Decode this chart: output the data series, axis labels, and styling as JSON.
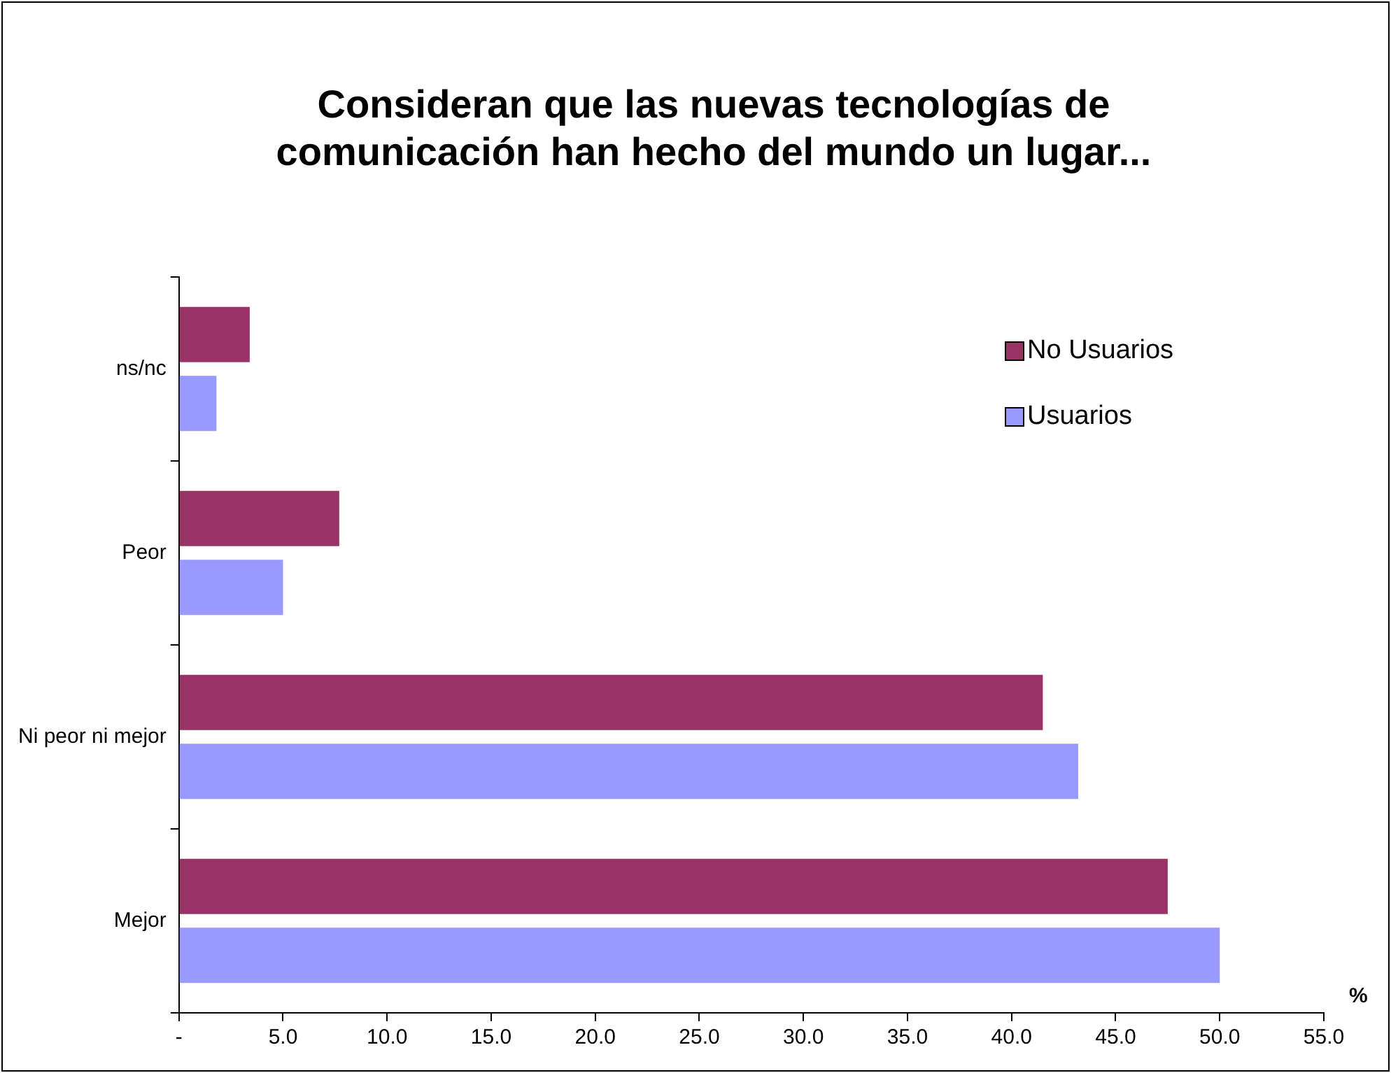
{
  "chart_data": {
    "type": "bar",
    "orientation": "horizontal",
    "title": "Consideran que las nuevas tecnologías de comunicación han hecho del mundo un lugar...",
    "xlabel": "%",
    "categories": [
      "ns/nc",
      "Peor",
      "Ni peor ni mejor",
      "Mejor"
    ],
    "series": [
      {
        "name": "No Usuarios",
        "color": "#993366",
        "values": [
          3.4,
          7.7,
          41.5,
          47.5
        ]
      },
      {
        "name": "Usuarios",
        "color": "#9999ff",
        "values": [
          1.8,
          5.0,
          43.2,
          50.0
        ]
      }
    ],
    "xlim": [
      0,
      55
    ],
    "xticks": [
      {
        "value": 0,
        "label": "-"
      },
      {
        "value": 5,
        "label": "5.0"
      },
      {
        "value": 10,
        "label": "10.0"
      },
      {
        "value": 15,
        "label": "15.0"
      },
      {
        "value": 20,
        "label": "20.0"
      },
      {
        "value": 25,
        "label": "25.0"
      },
      {
        "value": 30,
        "label": "30.0"
      },
      {
        "value": 35,
        "label": "35.0"
      },
      {
        "value": 40,
        "label": "40.0"
      },
      {
        "value": 45,
        "label": "45.0"
      },
      {
        "value": 50,
        "label": "50.0"
      },
      {
        "value": 55,
        "label": "55.0"
      }
    ],
    "grid": false,
    "legend": "top right"
  }
}
